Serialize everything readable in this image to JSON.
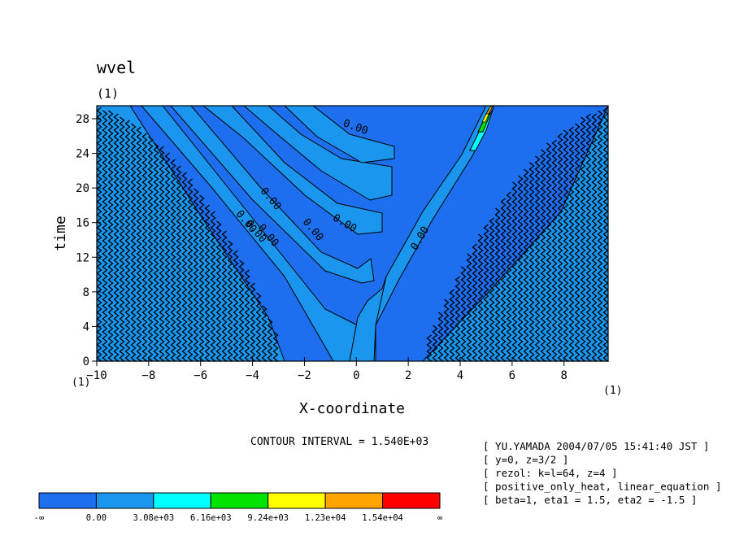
{
  "chart_data": {
    "type": "heatmap",
    "title": "wvel",
    "title_units": "(1)",
    "xlabel": "X-coordinate",
    "ylabel": "time",
    "x_units": "(1)",
    "y_units": "(1)",
    "xlim": [
      -10,
      9.7
    ],
    "ylim": [
      0,
      29.5
    ],
    "x_ticks": [
      -10,
      -8,
      -6,
      -4,
      -2,
      0,
      2,
      4,
      6,
      8
    ],
    "y_ticks": [
      0,
      4,
      8,
      12,
      16,
      20,
      24,
      28
    ],
    "contour_interval": "CONTOUR INTERVAL = 1.540E+03",
    "contour_labels": [
      "0.00",
      "0.00",
      "0.00",
      "0.00",
      "0.00",
      "0.00",
      "0.00",
      "0.00"
    ],
    "colorbar": {
      "levels": [
        "-∞",
        "0.00",
        "3.08e+03",
        "6.16e+03",
        "9.24e+03",
        "1.23e+04",
        "1.54e+04",
        "∞"
      ],
      "colors": [
        "#1e6ef0",
        "#1a96ee",
        "#00ffff",
        "#00e400",
        "#ffff00",
        "#ffa500",
        "#ff0000"
      ]
    },
    "grid": false
  },
  "info_lines": [
    "[ YU.YAMADA 2004/07/05 15:41:40 JST ]",
    "[ y=0, z=3/2 ]",
    "[ rezol: k=l=64, z=4 ]",
    "[ positive_only_heat, linear_equation ]",
    "[ beta=1, eta1 = 1.5, eta2 = -1.5 ]"
  ]
}
